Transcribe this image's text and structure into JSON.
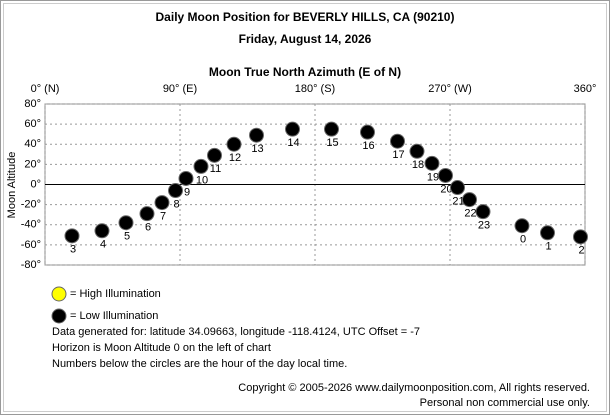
{
  "chart_data": {
    "type": "scatter",
    "title": "Daily Moon Position for BEVERLY HILLS, CA (90210)",
    "subtitle": "Friday, August 14, 2026",
    "x_label": "Moon True North Azimuth (E of N)",
    "y_label": "Moon Altitude",
    "xlim": [
      0,
      360
    ],
    "xticks": [
      {
        "value": 0,
        "label": "0° (N)"
      },
      {
        "value": 90,
        "label": "90° (E)"
      },
      {
        "value": 180,
        "label": "180° (S)"
      },
      {
        "value": 270,
        "label": "270° (W)"
      },
      {
        "value": 360,
        "label": "360°"
      }
    ],
    "ylim": [
      -80,
      80
    ],
    "yticks": [
      {
        "value": 80,
        "label": "80°"
      },
      {
        "value": 60,
        "label": "60°"
      },
      {
        "value": 40,
        "label": "40°"
      },
      {
        "value": 20,
        "label": "20°"
      },
      {
        "value": 0,
        "label": "0°"
      },
      {
        "value": -20,
        "label": "-20°"
      },
      {
        "value": -40,
        "label": "-40°"
      },
      {
        "value": -60,
        "label": "-60°"
      },
      {
        "value": -80,
        "label": "-80°"
      }
    ],
    "grid": true,
    "series": [
      {
        "name": "= High Illumination",
        "color": "#ffff00",
        "x": [],
        "values": [],
        "point_labels": []
      },
      {
        "name": "= Low Illumination",
        "color": "#000000",
        "x": [
          18,
          38,
          54,
          68,
          78,
          87,
          94,
          104,
          113,
          126,
          141,
          165,
          191,
          215,
          235,
          248,
          258,
          267,
          275,
          283,
          292,
          318,
          335,
          357
        ],
        "values": [
          -51,
          -46,
          -38,
          -29,
          -18,
          -6,
          6,
          18,
          29,
          40,
          49,
          55,
          55,
          52,
          43,
          33,
          21,
          9,
          -3,
          -15,
          -27,
          -41,
          -48,
          -52
        ],
        "point_labels": [
          "3",
          "4",
          "5",
          "6",
          "7",
          "8",
          "9",
          "10",
          "11",
          "12",
          "13",
          "14",
          "15",
          "16",
          "17",
          "18",
          "19",
          "20",
          "21",
          "22",
          "23",
          "0",
          "1",
          "2"
        ]
      }
    ],
    "notes": [
      "Data generated for: latitude 34.09663, longitude -118.4124, UTC Offset = -7",
      "Horizon is Moon Altitude 0 on the left of chart",
      "Numbers below the circles are the hour of the day local time."
    ],
    "copyright": [
      "Copyright © 2005-2026 www.dailymoonposition.com, All rights reserved.",
      "Personal non commercial use only."
    ]
  }
}
